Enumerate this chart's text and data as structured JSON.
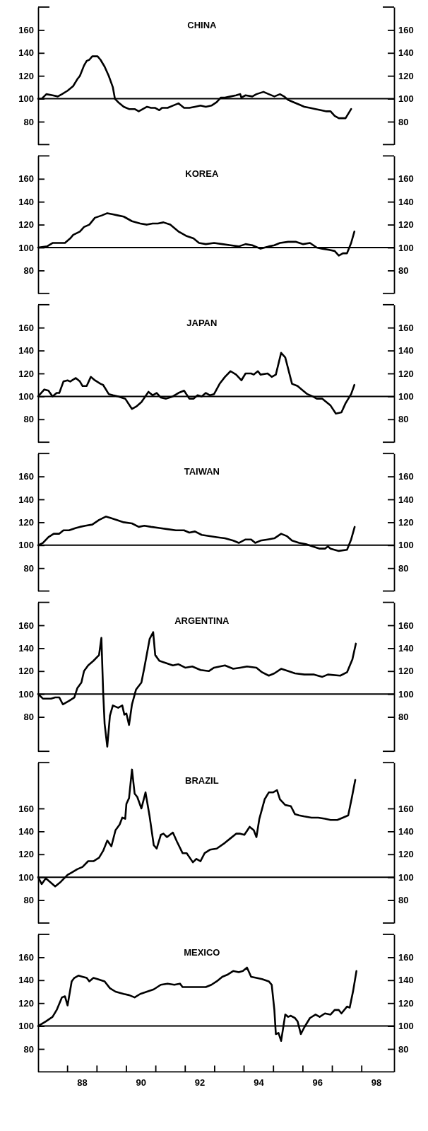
{
  "chart_data": [
    {
      "type": "line",
      "title": "CHINA",
      "color": "#000000",
      "xlim": [
        86.5,
        98.6
      ],
      "ylim": [
        60,
        180
      ],
      "yticks": [
        80,
        100,
        120,
        140,
        160
      ],
      "y2lim": [
        60,
        180
      ],
      "y2ticks": [
        80,
        100,
        120,
        140,
        160
      ],
      "tick_labels": "y",
      "ref_lines": [
        {
          "axis": "y",
          "value": 100
        }
      ],
      "x": [
        86.5,
        86.62,
        86.78,
        86.99,
        87.17,
        87.31,
        87.5,
        87.69,
        87.83,
        87.92,
        88.06,
        88.15,
        88.24,
        88.34,
        88.43,
        88.52,
        88.62,
        88.76,
        88.9,
        89.04,
        89.11,
        89.22,
        89.41,
        89.59,
        89.78,
        89.92,
        90.06,
        90.2,
        90.34,
        90.48,
        90.62,
        90.71,
        90.9,
        91.08,
        91.27,
        91.46,
        91.64,
        91.83,
        92.02,
        92.2,
        92.39,
        92.57,
        92.71,
        92.85,
        93.04,
        93.23,
        93.37,
        93.41,
        93.55,
        93.78,
        93.92,
        94.16,
        94.34,
        94.53,
        94.72,
        94.86,
        95.0,
        95.18,
        95.37,
        95.55,
        95.74,
        95.93,
        96.11,
        96.3,
        96.44,
        96.58,
        96.72,
        96.95,
        97.14
      ],
      "values": [
        100,
        100,
        104,
        103,
        102,
        104,
        107,
        111,
        117,
        120,
        129,
        133,
        134,
        137,
        137,
        137,
        134,
        128,
        120,
        110,
        100,
        97,
        93,
        91,
        91,
        89,
        91,
        93,
        92,
        92,
        90,
        92,
        92,
        94,
        96,
        92,
        92,
        93,
        94,
        93,
        94,
        97,
        101,
        101,
        102,
        103,
        104,
        101,
        103,
        102,
        104,
        106,
        104,
        102,
        104,
        102,
        99,
        97,
        95,
        93,
        92,
        91,
        90,
        89,
        89,
        85,
        83,
        83,
        91
      ]
    },
    {
      "type": "line",
      "title": "KOREA",
      "color": "#000000",
      "xlim": [
        86.5,
        98.6
      ],
      "ylim": [
        60,
        180
      ],
      "yticks": [
        80,
        100,
        120,
        140,
        160
      ],
      "y2lim": [
        60,
        180
      ],
      "y2ticks": [
        80,
        100,
        120,
        140,
        160
      ],
      "tick_labels": "y",
      "ref_lines": [
        {
          "axis": "y",
          "value": 100
        }
      ],
      "x": [
        86.5,
        86.8,
        86.99,
        87.17,
        87.41,
        87.59,
        87.69,
        87.92,
        88.06,
        88.24,
        88.43,
        88.66,
        88.85,
        89.04,
        89.22,
        89.41,
        89.69,
        89.97,
        90.2,
        90.39,
        90.57,
        90.76,
        90.99,
        91.27,
        91.55,
        91.78,
        91.97,
        92.2,
        92.48,
        92.76,
        93.04,
        93.32,
        93.55,
        93.78,
        94.06,
        94.34,
        94.53,
        94.72,
        95.0,
        95.27,
        95.51,
        95.74,
        95.97,
        96.16,
        96.39,
        96.58,
        96.72,
        96.86,
        97.0,
        97.14,
        97.25
      ],
      "values": [
        100,
        101,
        104,
        104,
        104,
        108,
        111,
        114,
        118,
        120,
        126,
        128,
        130,
        129,
        128,
        127,
        123,
        121,
        120,
        121,
        121,
        122,
        120,
        114,
        110,
        108,
        104,
        103,
        104,
        103,
        102,
        101,
        103,
        102,
        99,
        101,
        102,
        104,
        105,
        105,
        103,
        104,
        100,
        99,
        98,
        97,
        93,
        95,
        95,
        104,
        114
      ]
    },
    {
      "type": "line",
      "title": "JAPAN",
      "color": "#000000",
      "xlim": [
        86.5,
        98.6
      ],
      "ylim": [
        60,
        180
      ],
      "yticks": [
        80,
        100,
        120,
        140,
        160
      ],
      "y2lim": [
        60,
        180
      ],
      "y2ticks": [
        80,
        100,
        120,
        140,
        160
      ],
      "tick_labels": "y",
      "ref_lines": [
        {
          "axis": "y",
          "value": 100
        }
      ],
      "x": [
        86.5,
        86.71,
        86.85,
        86.99,
        87.13,
        87.22,
        87.36,
        87.5,
        87.59,
        87.78,
        87.92,
        88.01,
        88.15,
        88.29,
        88.43,
        88.62,
        88.71,
        88.9,
        89.04,
        89.22,
        89.46,
        89.69,
        89.83,
        90.01,
        90.25,
        90.39,
        90.53,
        90.67,
        90.85,
        91.08,
        91.27,
        91.46,
        91.64,
        91.78,
        91.92,
        92.06,
        92.2,
        92.34,
        92.48,
        92.67,
        92.85,
        93.04,
        93.23,
        93.41,
        93.55,
        93.74,
        93.83,
        93.97,
        94.06,
        94.3,
        94.44,
        94.58,
        94.76,
        94.9,
        95.01,
        95.13,
        95.32,
        95.46,
        95.65,
        95.83,
        95.97,
        96.16,
        96.3,
        96.44,
        96.62,
        96.81,
        96.95,
        97.14,
        97.25
      ],
      "values": [
        100,
        106,
        105,
        100,
        103,
        103,
        113,
        114,
        113,
        116,
        113,
        109,
        109,
        117,
        114,
        111,
        110,
        102,
        101,
        100,
        98,
        89,
        91,
        95,
        104,
        101,
        103,
        99,
        98,
        100,
        103,
        105,
        98,
        98,
        101,
        100,
        103,
        101,
        102,
        111,
        117,
        122,
        119,
        114,
        120,
        120,
        119,
        122,
        119,
        120,
        117,
        119,
        138,
        134,
        123,
        111,
        109,
        106,
        102,
        100,
        98,
        98,
        95,
        92,
        85,
        86,
        94,
        102,
        110
      ]
    },
    {
      "type": "line",
      "title": "TAIWAN",
      "color": "#000000",
      "xlim": [
        86.5,
        98.6
      ],
      "ylim": [
        60,
        180
      ],
      "yticks": [
        80,
        100,
        120,
        140,
        160
      ],
      "y2lim": [
        60,
        180
      ],
      "y2ticks": [
        80,
        100,
        120,
        140,
        160
      ],
      "tick_labels": "y",
      "ref_lines": [
        {
          "axis": "y",
          "value": 100
        }
      ],
      "x": [
        86.5,
        86.66,
        86.85,
        87.03,
        87.22,
        87.36,
        87.55,
        87.78,
        87.92,
        88.11,
        88.34,
        88.57,
        88.8,
        88.94,
        89.18,
        89.41,
        89.69,
        89.92,
        90.11,
        90.34,
        90.62,
        90.9,
        91.18,
        91.46,
        91.64,
        91.83,
        92.06,
        92.3,
        92.57,
        92.85,
        93.13,
        93.32,
        93.55,
        93.74,
        93.88,
        94.06,
        94.3,
        94.53,
        94.76,
        94.95,
        95.13,
        95.37,
        95.6,
        95.83,
        96.07,
        96.25,
        96.35,
        96.44,
        96.72,
        97.0,
        97.14,
        97.26
      ],
      "values": [
        100,
        102,
        107,
        110,
        110,
        113,
        113,
        115,
        116,
        117,
        118,
        122,
        125,
        124,
        122,
        120,
        119,
        116,
        117,
        116,
        115,
        114,
        113,
        113,
        111,
        112,
        109,
        108,
        107,
        106,
        104,
        102,
        105,
        105,
        102,
        104,
        105,
        106,
        110,
        108,
        104,
        102,
        101,
        99,
        97,
        97,
        99,
        97,
        95,
        96,
        105,
        116
      ]
    },
    {
      "type": "line",
      "title": "ARGENTINA",
      "color": "#000000",
      "xlim": [
        86.5,
        98.6
      ],
      "ylim": [
        50,
        180
      ],
      "yticks": [
        80,
        100,
        120,
        140,
        160
      ],
      "y2lim": [
        50,
        180
      ],
      "y2ticks": [
        80,
        100,
        120,
        140,
        160
      ],
      "tick_labels": "y",
      "ref_lines": [
        {
          "axis": "y",
          "value": 100
        }
      ],
      "x": [
        86.5,
        86.66,
        86.94,
        87.08,
        87.22,
        87.34,
        87.55,
        87.73,
        87.83,
        87.97,
        88.06,
        88.2,
        88.38,
        88.57,
        88.65,
        88.71,
        88.76,
        88.85,
        88.94,
        89.04,
        89.22,
        89.36,
        89.43,
        89.5,
        89.59,
        89.69,
        89.83,
        90.01,
        90.11,
        90.29,
        90.41,
        90.48,
        90.62,
        90.85,
        91.08,
        91.27,
        91.5,
        91.74,
        92.02,
        92.3,
        92.48,
        92.85,
        93.13,
        93.37,
        93.6,
        93.92,
        94.11,
        94.34,
        94.53,
        94.76,
        95.0,
        95.23,
        95.55,
        95.88,
        96.16,
        96.35,
        96.77,
        97.0,
        97.18,
        97.3
      ],
      "values": [
        100,
        96,
        96,
        97,
        97,
        91,
        94,
        97,
        105,
        110,
        120,
        125,
        129,
        134,
        149,
        102,
        74,
        54,
        81,
        90,
        88,
        90,
        82,
        83,
        73,
        91,
        104,
        110,
        123,
        148,
        154,
        134,
        129,
        127,
        125,
        126,
        123,
        124,
        121,
        120,
        123,
        125,
        122,
        123,
        124,
        123,
        119,
        116,
        118,
        122,
        120,
        118,
        117,
        117,
        115,
        117,
        116,
        119,
        130,
        144
      ]
    },
    {
      "type": "line",
      "title": "BRAZIL",
      "color": "#000000",
      "xlim": [
        86.5,
        98.6
      ],
      "ylim": [
        60,
        200
      ],
      "yticks": [
        80,
        100,
        120,
        140,
        160
      ],
      "y2lim": [
        60,
        200
      ],
      "y2ticks": [
        80,
        100,
        120,
        140,
        160
      ],
      "tick_labels": "y",
      "ref_lines": [
        {
          "axis": "y",
          "value": 100
        }
      ],
      "x": [
        86.5,
        86.62,
        86.76,
        86.9,
        87.08,
        87.27,
        87.5,
        87.64,
        87.83,
        88.01,
        88.2,
        88.38,
        88.57,
        88.71,
        88.85,
        88.99,
        89.13,
        89.27,
        89.36,
        89.46,
        89.5,
        89.59,
        89.69,
        89.78,
        89.87,
        90.01,
        90.15,
        90.29,
        90.43,
        90.53,
        90.67,
        90.76,
        90.88,
        91.08,
        91.22,
        91.41,
        91.55,
        91.76,
        91.88,
        92.02,
        92.16,
        92.34,
        92.57,
        92.85,
        93.04,
        93.23,
        93.37,
        93.51,
        93.69,
        93.83,
        93.92,
        94.02,
        94.2,
        94.34,
        94.48,
        94.62,
        94.72,
        94.9,
        95.09,
        95.23,
        95.37,
        95.55,
        95.79,
        96.02,
        96.25,
        96.44,
        96.67,
        96.86,
        97.04,
        97.16,
        97.28
      ],
      "values": [
        100,
        94,
        99,
        96,
        92,
        96,
        102,
        104,
        107,
        109,
        114,
        114,
        117,
        123,
        132,
        127,
        141,
        146,
        152,
        151,
        164,
        169,
        194,
        173,
        170,
        160,
        174,
        153,
        128,
        125,
        137,
        138,
        135,
        139,
        131,
        121,
        121,
        113,
        116,
        114,
        121,
        124,
        125,
        130,
        134,
        138,
        138,
        137,
        144,
        141,
        135,
        151,
        168,
        174,
        174,
        176,
        168,
        163,
        162,
        155,
        154,
        153,
        152,
        152,
        151,
        150,
        150,
        152,
        154,
        169,
        185
      ]
    },
    {
      "type": "line",
      "title": "MEXICO",
      "color": "#000000",
      "xlim": [
        86.5,
        98.6
      ],
      "ylim": [
        60,
        180
      ],
      "yticks": [
        80,
        100,
        120,
        140,
        160
      ],
      "y2lim": [
        60,
        180
      ],
      "y2ticks": [
        80,
        100,
        120,
        140,
        160
      ],
      "ref_lines": [
        {
          "axis": "y",
          "value": 100
        }
      ],
      "xticks": [
        {
          "value": 87.5,
          "label": null
        },
        {
          "value": 88.5,
          "label": null
        },
        {
          "value": 89.5,
          "label": null
        },
        {
          "value": 90.5,
          "label": null
        },
        {
          "value": 91.5,
          "label": null
        },
        {
          "value": 92.5,
          "label": null
        },
        {
          "value": 93.5,
          "label": null
        },
        {
          "value": 94.5,
          "label": null
        },
        {
          "value": 95.5,
          "label": null
        },
        {
          "value": 96.5,
          "label": null
        },
        {
          "value": 97.5,
          "label": null
        },
        88,
        90,
        92,
        94,
        96,
        98
      ],
      "x": [
        86.5,
        86.76,
        86.99,
        87.13,
        87.31,
        87.41,
        87.5,
        87.64,
        87.73,
        87.87,
        88.01,
        88.15,
        88.24,
        88.38,
        88.52,
        88.76,
        88.94,
        89.13,
        89.41,
        89.59,
        89.78,
        89.97,
        90.2,
        90.43,
        90.67,
        90.9,
        91.13,
        91.32,
        91.41,
        91.64,
        91.92,
        92.2,
        92.39,
        92.57,
        92.76,
        92.95,
        93.13,
        93.32,
        93.46,
        93.6,
        93.74,
        93.92,
        94.11,
        94.34,
        94.44,
        94.53,
        94.58,
        94.67,
        94.76,
        94.9,
        95.0,
        95.09,
        95.23,
        95.32,
        95.43,
        95.55,
        95.74,
        95.93,
        96.07,
        96.25,
        96.44,
        96.58,
        96.72,
        96.81,
        97.0,
        97.09,
        97.21,
        97.32
      ],
      "values": [
        100,
        104,
        108,
        114,
        125,
        126,
        118,
        139,
        142,
        144,
        143,
        142,
        139,
        142,
        141,
        139,
        133,
        130,
        128,
        127,
        125,
        128,
        130,
        132,
        136,
        137,
        136,
        137,
        134,
        134,
        134,
        134,
        136,
        139,
        143,
        145,
        148,
        147,
        148,
        151,
        143,
        142,
        141,
        139,
        136,
        114,
        93,
        94,
        87,
        110,
        108,
        109,
        107,
        104,
        93,
        99,
        107,
        110,
        108,
        111,
        110,
        114,
        114,
        111,
        117,
        116,
        131,
        148
      ]
    }
  ]
}
